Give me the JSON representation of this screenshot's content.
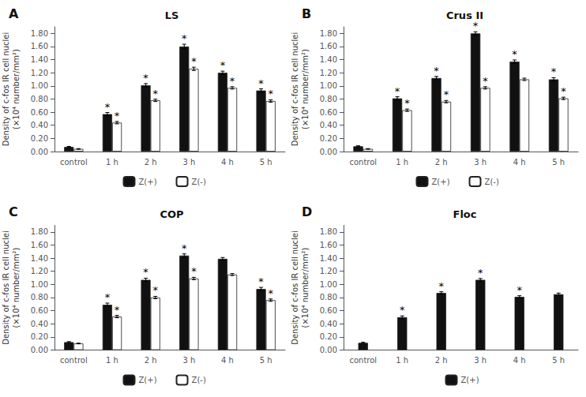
{
  "chart_data": [
    {
      "type": "bar",
      "title": "LS",
      "annotations": [
        "A"
      ],
      "ylabel": "Density of c-fos IR cell nuclei\n(×10⁴ number/mm²)",
      "categories": [
        "control",
        "1 h",
        "2 h",
        "3 h",
        "4 h",
        "5 h"
      ],
      "series": [
        {
          "name": "Z(+)",
          "color": "#111111",
          "values": [
            0.07,
            0.57,
            1.01,
            1.6,
            1.2,
            0.93
          ],
          "errors": [
            0.008,
            0.025,
            0.025,
            0.035,
            0.025,
            0.025
          ],
          "annotations": [
            null,
            "*",
            "*",
            "*",
            "*",
            "*"
          ]
        },
        {
          "name": "Z(-)",
          "color": "#ffffff",
          "values": [
            0.04,
            0.44,
            0.78,
            1.26,
            0.97,
            0.77
          ],
          "errors": [
            0.005,
            0.018,
            0.018,
            0.025,
            0.018,
            0.018
          ],
          "annotations": [
            null,
            "*",
            "*",
            "*",
            "*",
            "*"
          ]
        }
      ],
      "ylim": [
        0.0,
        1.9
      ],
      "yticks": [
        {
          "value": 0.0,
          "label": "0.00"
        },
        {
          "value": 0.2,
          "label": "0.20"
        },
        {
          "value": 0.4,
          "label": "0.40"
        },
        {
          "value": 0.6,
          "label": "0.60"
        },
        {
          "value": 0.8,
          "label": "0.80"
        },
        {
          "value": 1.0,
          "label": "1.00"
        },
        {
          "value": 1.2,
          "label": "1.20"
        },
        {
          "value": 1.4,
          "label": "1.40"
        },
        {
          "value": 1.6,
          "label": "1.60"
        },
        {
          "value": 1.8,
          "label": "1.80"
        }
      ],
      "grid": false,
      "legend": "bottom"
    },
    {
      "type": "bar",
      "title": "Crus II",
      "annotations": [
        "B"
      ],
      "ylabel": "Density of c-fos IR cell nuclei\n(×10⁴ number/mm²)",
      "categories": [
        "control",
        "1 h",
        "2 h",
        "3 h",
        "4 h",
        "5 h"
      ],
      "series": [
        {
          "name": "Z(+)",
          "color": "#111111",
          "values": [
            0.08,
            0.81,
            1.12,
            1.8,
            1.37,
            1.1
          ],
          "errors": [
            0.008,
            0.025,
            0.025,
            0.025,
            0.025,
            0.025
          ],
          "annotations": [
            null,
            "*",
            "*",
            "*",
            "*",
            "*"
          ]
        },
        {
          "name": "Z(-)",
          "color": "#ffffff",
          "values": [
            0.04,
            0.63,
            0.76,
            0.97,
            1.1,
            0.81
          ],
          "errors": [
            0.005,
            0.018,
            0.018,
            0.018,
            0.018,
            0.018
          ],
          "annotations": [
            null,
            "*",
            "*",
            "*",
            null,
            "*"
          ]
        }
      ],
      "ylim": [
        0.0,
        1.9
      ],
      "yticks": [
        {
          "value": 0.0,
          "label": "0.00"
        },
        {
          "value": 0.2,
          "label": "0.20"
        },
        {
          "value": 0.4,
          "label": "0.40"
        },
        {
          "value": 0.6,
          "label": "0.60"
        },
        {
          "value": 0.8,
          "label": "0.80"
        },
        {
          "value": 1.0,
          "label": "1.00"
        },
        {
          "value": 1.2,
          "label": "1.20"
        },
        {
          "value": 1.4,
          "label": "1.40"
        },
        {
          "value": 1.6,
          "label": "1.60"
        },
        {
          "value": 1.8,
          "label": "1.80"
        }
      ],
      "grid": false,
      "legend": "bottom"
    },
    {
      "type": "bar",
      "title": "COP",
      "annotations": [
        "C"
      ],
      "ylabel": "Density of c-fos IR cell nuclei\n(×10⁴ number/mm²)",
      "categories": [
        "control",
        "1 h",
        "2 h",
        "3 h",
        "4 h",
        "5 h"
      ],
      "series": [
        {
          "name": "Z(+)",
          "color": "#111111",
          "values": [
            0.12,
            0.69,
            1.07,
            1.44,
            1.39,
            0.93
          ],
          "errors": [
            0.008,
            0.025,
            0.025,
            0.025,
            0.02,
            0.025
          ],
          "annotations": [
            null,
            "*",
            "*",
            "*",
            null,
            "*"
          ]
        },
        {
          "name": "Z(-)",
          "color": "#ffffff",
          "values": [
            0.1,
            0.51,
            0.8,
            1.09,
            1.15,
            0.76
          ],
          "errors": [
            0.005,
            0.018,
            0.018,
            0.018,
            0.015,
            0.018
          ],
          "annotations": [
            null,
            "*",
            "*",
            "*",
            null,
            "*"
          ]
        }
      ],
      "ylim": [
        0.0,
        1.9
      ],
      "yticks": [
        {
          "value": 0.0,
          "label": "0.00"
        },
        {
          "value": 0.2,
          "label": "0.20"
        },
        {
          "value": 0.4,
          "label": "0.40"
        },
        {
          "value": 0.6,
          "label": "0.60"
        },
        {
          "value": 0.8,
          "label": "0.80"
        },
        {
          "value": 1.0,
          "label": "1.00"
        },
        {
          "value": 1.2,
          "label": "1.20"
        },
        {
          "value": 1.4,
          "label": "1.40"
        },
        {
          "value": 1.6,
          "label": "1.60"
        },
        {
          "value": 1.8,
          "label": "1.80"
        }
      ],
      "grid": false,
      "legend": "bottom"
    },
    {
      "type": "bar",
      "title": "Floc",
      "annotations": [
        "D"
      ],
      "ylabel": "Density of c-fos IR cell nuclei\n(×10⁴ number/mm²)",
      "categories": [
        "control",
        "1 h",
        "2 h",
        "3 h",
        "4 h",
        "5 h"
      ],
      "series": [
        {
          "name": "Z(+)",
          "color": "#111111",
          "values": [
            0.11,
            0.5,
            0.87,
            1.07,
            0.81,
            0.85
          ],
          "errors": [
            0.008,
            0.02,
            0.018,
            0.02,
            0.018,
            0.018
          ],
          "annotations": [
            null,
            "*",
            "*",
            "*",
            "*",
            null
          ]
        }
      ],
      "ylim": [
        0.0,
        1.9
      ],
      "yticks": [
        {
          "value": 0.0,
          "label": "0.00"
        },
        {
          "value": 0.2,
          "label": "0.20"
        },
        {
          "value": 0.4,
          "label": "0.40"
        },
        {
          "value": 0.6,
          "label": "0.60"
        },
        {
          "value": 0.8,
          "label": "0.80"
        },
        {
          "value": 1.0,
          "label": "1.00"
        },
        {
          "value": 1.2,
          "label": "1.20"
        },
        {
          "value": 1.4,
          "label": "1.40"
        },
        {
          "value": 1.6,
          "label": "1.60"
        },
        {
          "value": 1.8,
          "label": "1.80"
        }
      ],
      "grid": false,
      "legend": "bottom"
    }
  ]
}
